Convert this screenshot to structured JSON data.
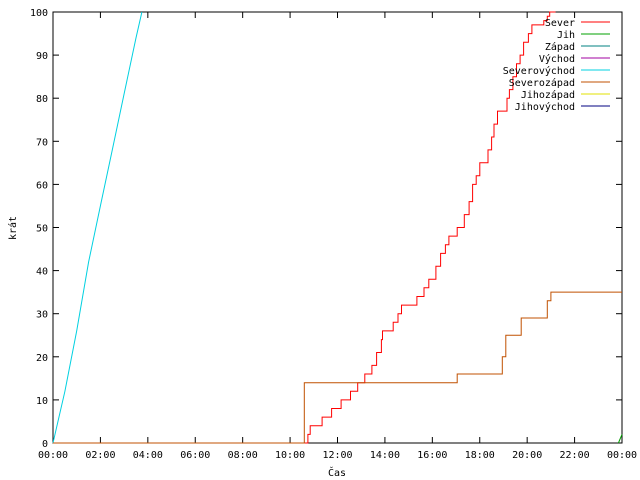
{
  "chart_data": {
    "type": "line",
    "title": "",
    "xlabel": "Čas",
    "ylabel": "krát",
    "xlim": [
      0,
      24
    ],
    "ylim": [
      0,
      100
    ],
    "x_ticks": [
      {
        "value": 0,
        "label": "00:00"
      },
      {
        "value": 2,
        "label": "02:00"
      },
      {
        "value": 4,
        "label": "04:00"
      },
      {
        "value": 6,
        "label": "06:00"
      },
      {
        "value": 8,
        "label": "08:00"
      },
      {
        "value": 10,
        "label": "10:00"
      },
      {
        "value": 12,
        "label": "12:00"
      },
      {
        "value": 14,
        "label": "14:00"
      },
      {
        "value": 16,
        "label": "16:00"
      },
      {
        "value": 18,
        "label": "18:00"
      },
      {
        "value": 20,
        "label": "20:00"
      },
      {
        "value": 22,
        "label": "22:00"
      },
      {
        "value": 24,
        "label": "00:00"
      }
    ],
    "y_ticks": [
      0,
      10,
      20,
      30,
      40,
      50,
      60,
      70,
      80,
      90,
      100
    ],
    "grid": false,
    "legend_position": "top-right",
    "series": [
      {
        "name": "Sever",
        "color": "#ff0000",
        "step": true,
        "points": [
          [
            0,
            0
          ],
          [
            10.7,
            0
          ],
          [
            10.75,
            2
          ],
          [
            10.8,
            2
          ],
          [
            10.85,
            4
          ],
          [
            11.3,
            4
          ],
          [
            11.35,
            6
          ],
          [
            11.7,
            6
          ],
          [
            11.75,
            8
          ],
          [
            12.1,
            8
          ],
          [
            12.15,
            10
          ],
          [
            12.5,
            10
          ],
          [
            12.55,
            12
          ],
          [
            12.8,
            12
          ],
          [
            12.85,
            14
          ],
          [
            13.1,
            14
          ],
          [
            13.15,
            16
          ],
          [
            13.4,
            16
          ],
          [
            13.45,
            18
          ],
          [
            13.6,
            18
          ],
          [
            13.65,
            21
          ],
          [
            13.8,
            21
          ],
          [
            13.85,
            24
          ],
          [
            13.9,
            26
          ],
          [
            14.3,
            26
          ],
          [
            14.35,
            28
          ],
          [
            14.5,
            28
          ],
          [
            14.55,
            30
          ],
          [
            14.7,
            32
          ],
          [
            15.3,
            32
          ],
          [
            15.35,
            34
          ],
          [
            15.6,
            34
          ],
          [
            15.65,
            36
          ],
          [
            15.8,
            36
          ],
          [
            15.85,
            38
          ],
          [
            16.1,
            38
          ],
          [
            16.15,
            41
          ],
          [
            16.3,
            41
          ],
          [
            16.35,
            44
          ],
          [
            16.55,
            46
          ],
          [
            16.7,
            48
          ],
          [
            17.0,
            48
          ],
          [
            17.05,
            50
          ],
          [
            17.3,
            50
          ],
          [
            17.35,
            53
          ],
          [
            17.55,
            56
          ],
          [
            17.7,
            60
          ],
          [
            17.85,
            62
          ],
          [
            18.0,
            65
          ],
          [
            18.3,
            65
          ],
          [
            18.35,
            68
          ],
          [
            18.5,
            71
          ],
          [
            18.6,
            74
          ],
          [
            18.75,
            77
          ],
          [
            19.1,
            77
          ],
          [
            19.15,
            80
          ],
          [
            19.25,
            82
          ],
          [
            19.4,
            85
          ],
          [
            19.55,
            88
          ],
          [
            19.7,
            90
          ],
          [
            19.85,
            93
          ],
          [
            20.05,
            95
          ],
          [
            20.2,
            97
          ],
          [
            20.65,
            97
          ],
          [
            20.7,
            98
          ],
          [
            20.85,
            99
          ],
          [
            20.95,
            100
          ],
          [
            21.2,
            100
          ]
        ]
      },
      {
        "name": "Jih",
        "color": "#00a000",
        "step": false,
        "points": [
          [
            23.85,
            0
          ],
          [
            24,
            2
          ]
        ]
      },
      {
        "name": "Západ",
        "color": "#008080",
        "step": false,
        "points": []
      },
      {
        "name": "Východ",
        "color": "#a000a0",
        "step": false,
        "points": []
      },
      {
        "name": "Severovýchod",
        "color": "#00d0e0",
        "step": false,
        "points": [
          [
            0,
            0
          ],
          [
            0.5,
            12
          ],
          [
            1.0,
            26
          ],
          [
            1.5,
            42
          ],
          [
            2.0,
            55
          ],
          [
            2.5,
            68
          ],
          [
            3.0,
            81
          ],
          [
            3.5,
            94
          ],
          [
            3.75,
            100
          ]
        ]
      },
      {
        "name": "Severozápad",
        "color": "#c05000",
        "step": true,
        "points": [
          [
            0,
            0
          ],
          [
            10.2,
            0
          ],
          [
            10.6,
            14
          ],
          [
            17.0,
            14
          ],
          [
            17.05,
            16
          ],
          [
            18.9,
            16
          ],
          [
            18.95,
            20
          ],
          [
            19.1,
            25
          ],
          [
            19.7,
            25
          ],
          [
            19.75,
            29
          ],
          [
            20.8,
            29
          ],
          [
            20.85,
            33
          ],
          [
            21.0,
            35
          ],
          [
            24,
            35
          ]
        ]
      },
      {
        "name": "Jihozápad",
        "color": "#e0e000",
        "step": false,
        "points": []
      },
      {
        "name": "Jihovýchod",
        "color": "#000080",
        "step": false,
        "points": []
      }
    ]
  }
}
